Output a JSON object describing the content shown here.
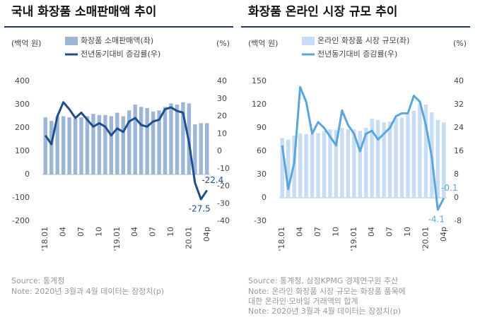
{
  "chart_data": [
    {
      "type": "bar",
      "title": "국내 화장품 소매판매액 추이",
      "y_unit": "(백억 원)",
      "y2_unit": "(%)",
      "categories": [
        "'18.01",
        null,
        null,
        "04",
        null,
        null,
        "07",
        null,
        null,
        "10",
        null,
        null,
        "'19.01",
        null,
        null,
        "04",
        null,
        null,
        "07",
        null,
        null,
        "10",
        null,
        null,
        "20.01",
        null,
        null,
        "04p"
      ],
      "series": [
        {
          "name": "화장품 소매판매액(좌)",
          "type": "bar",
          "color": "#9db6d8",
          "values": [
            245,
            230,
            250,
            250,
            245,
            240,
            245,
            250,
            260,
            255,
            255,
            250,
            265,
            250,
            275,
            300,
            290,
            285,
            270,
            275,
            290,
            305,
            300,
            310,
            305,
            215,
            220,
            220
          ]
        },
        {
          "name": "전년동기대비 증감률(우)",
          "type": "line",
          "axis": "y2",
          "color": "#1f4e8c",
          "values": [
            9,
            4,
            20,
            28,
            24,
            19,
            22,
            18,
            14,
            16,
            14,
            9,
            13,
            11,
            17,
            19,
            15,
            14,
            17,
            18,
            24,
            25,
            23,
            22,
            5,
            -18,
            -27.5,
            -22.4
          ],
          "value_labels": [
            null,
            null,
            null,
            null,
            null,
            null,
            null,
            null,
            null,
            null,
            null,
            null,
            null,
            null,
            null,
            null,
            null,
            null,
            null,
            null,
            null,
            null,
            null,
            null,
            null,
            null,
            "-27.5",
            "-22.4"
          ]
        }
      ],
      "ylim": [
        -200,
        400
      ],
      "yticks": [
        -200,
        -100,
        0,
        100,
        200,
        300,
        400
      ],
      "y2lim": [
        -40,
        40
      ],
      "y2ticks": [
        -40,
        -30,
        -20,
        -10,
        0,
        10,
        20,
        30,
        40
      ],
      "grid": false,
      "source": "Source: 통계청",
      "notes": [
        "Note: 2020년 3월과 4월 데이터는 잠정치(p)"
      ]
    },
    {
      "type": "bar",
      "title": "화장품 온라인 시장 규모 추이",
      "y_unit": "(백억 원)",
      "y2_unit": "(%)",
      "categories": [
        "'18.01",
        null,
        null,
        "04",
        null,
        null,
        "07",
        null,
        null,
        "10",
        null,
        null,
        "'19.01",
        null,
        null,
        "04",
        null,
        null,
        "07",
        null,
        null,
        "10",
        null,
        null,
        "'20.01",
        null,
        null,
        "04p"
      ],
      "series": [
        {
          "name": "온라인 화장품 시장 규모(좌)",
          "type": "bar",
          "color": "#c6ddf3",
          "values": [
            77,
            75,
            80,
            83,
            82,
            82,
            83,
            86,
            88,
            87,
            90,
            88,
            88,
            86,
            90,
            102,
            100,
            97,
            98,
            103,
            103,
            108,
            112,
            122,
            120,
            110,
            100,
            97
          ]
        },
        {
          "name": "전년동기대비 증감률(우)",
          "type": "line",
          "axis": "y2",
          "color": "#5aa5dd",
          "values": [
            18,
            3,
            12,
            38,
            33,
            22,
            26,
            24,
            21,
            18,
            30,
            25,
            22,
            16,
            22,
            23,
            20,
            22,
            24,
            28,
            29,
            29,
            35,
            33,
            25,
            14,
            -4.1,
            -0.1
          ],
          "value_labels": [
            null,
            null,
            null,
            null,
            null,
            null,
            null,
            null,
            null,
            null,
            null,
            null,
            null,
            null,
            null,
            null,
            null,
            null,
            null,
            null,
            null,
            null,
            null,
            null,
            null,
            null,
            "-4.1",
            "-0.1"
          ]
        }
      ],
      "ylim": [
        -30,
        150
      ],
      "yticks": [
        -30,
        0,
        30,
        60,
        90,
        120,
        150
      ],
      "y2lim": [
        -8,
        40
      ],
      "y2ticks": [
        -8,
        0,
        8,
        16,
        24,
        32,
        40
      ],
      "grid": false,
      "source": "Source: 통계청, 삼정KPMG 경제연구원 추산",
      "notes": [
        "Note: 온라인 화장품 시장 규모는 화장품 품목에",
        "대한 온라인·모바일 거래액의 합계",
        "Note: 2020년 3월과 4월 데이터는 잠정치(p)"
      ]
    }
  ]
}
